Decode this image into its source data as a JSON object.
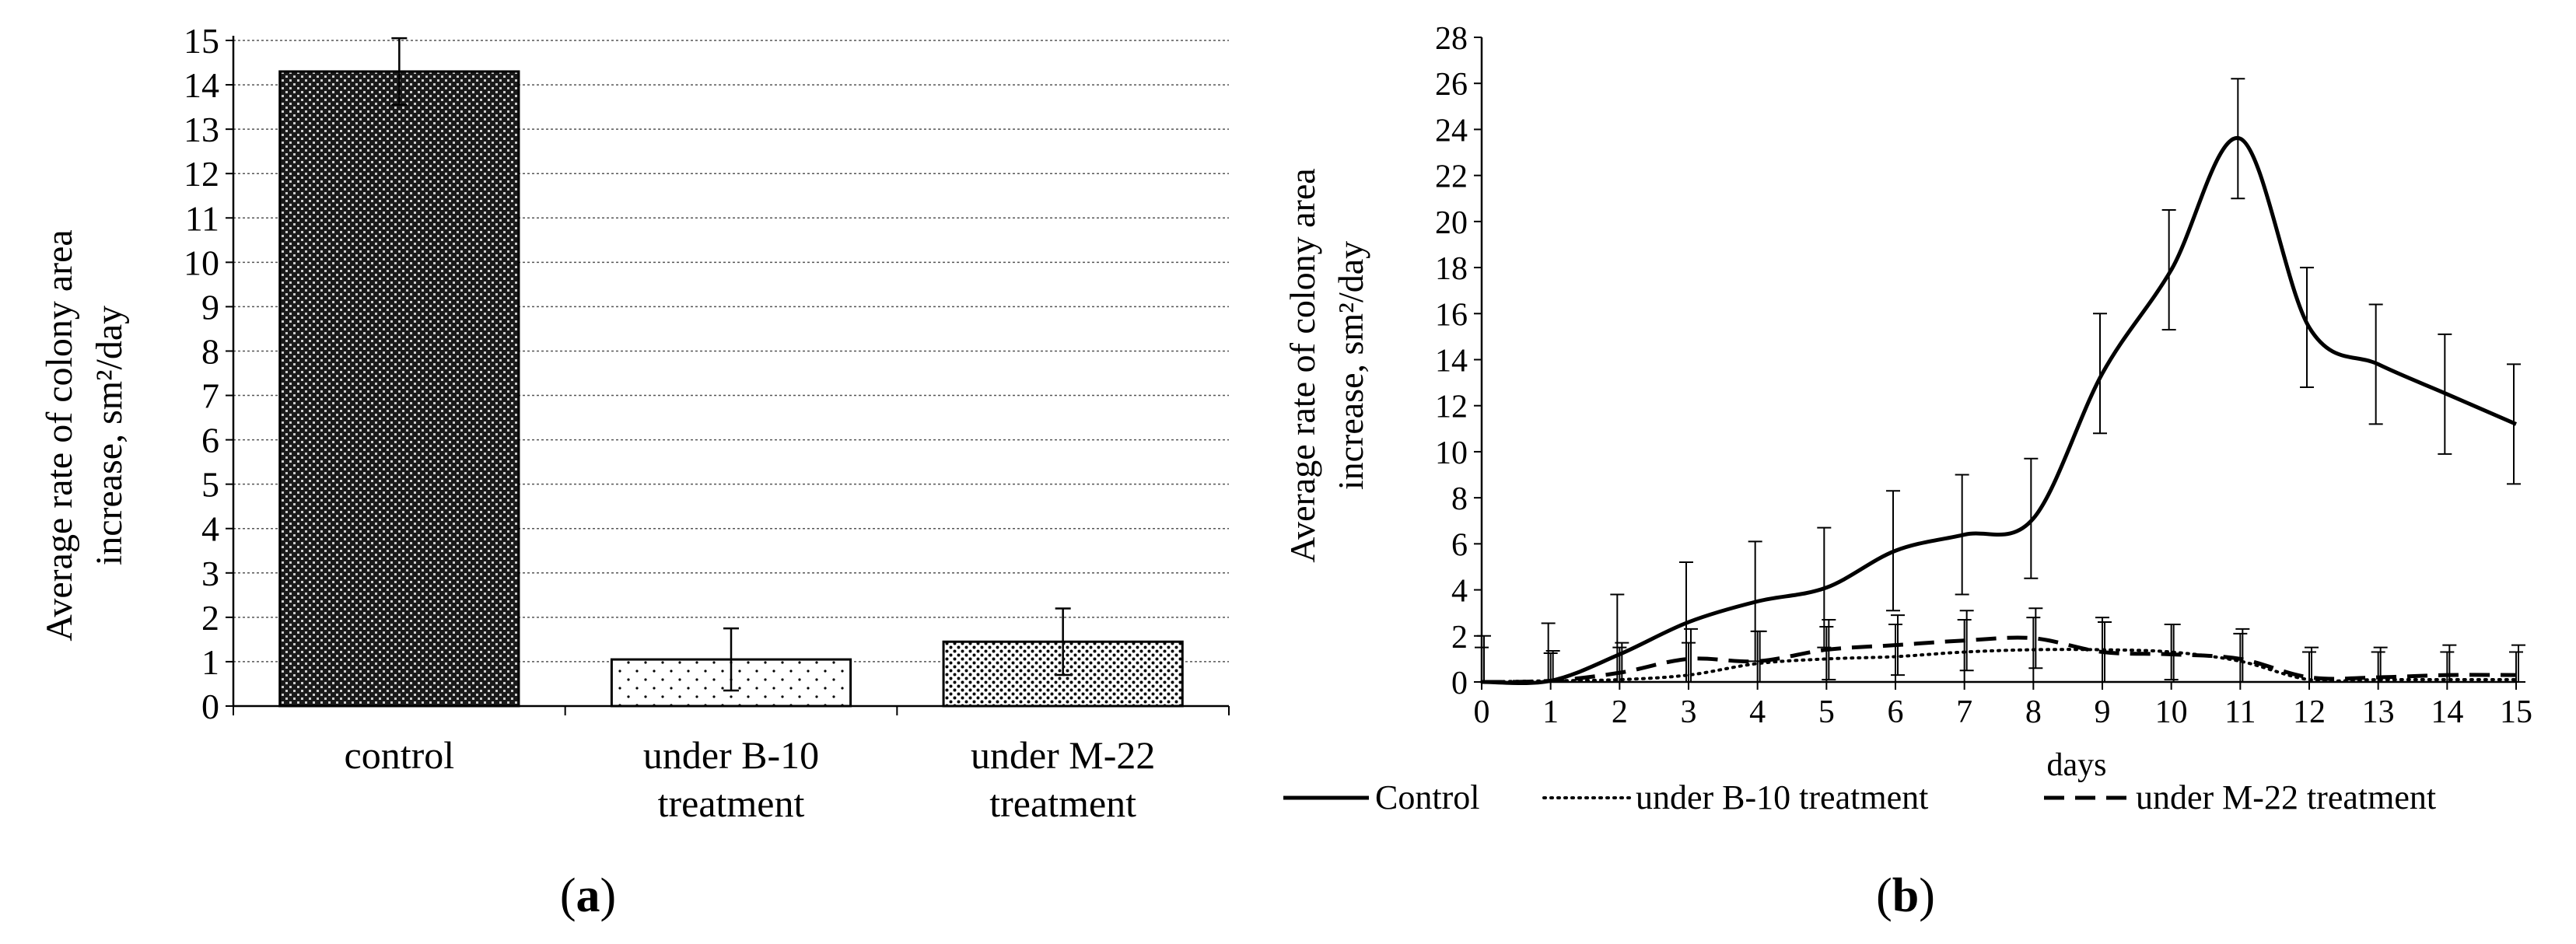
{
  "panels": {
    "a": {
      "label": "a"
    },
    "b": {
      "label": "b"
    }
  },
  "chart_data": [
    {
      "type": "bar",
      "panel": "a",
      "ylabel_line1": "Average rate of colony area",
      "ylabel_line2": "increase, sm²/day",
      "xlabel": "",
      "categories": [
        [
          "control"
        ],
        [
          "under B-10",
          "treatment"
        ],
        [
          "under M-22",
          "treatment"
        ]
      ],
      "values": [
        14.3,
        1.05,
        1.45
      ],
      "errors": [
        0.75,
        0.7,
        0.75
      ],
      "patterns": [
        "dense-crosshatch",
        "sparse-dots",
        "dense-dots"
      ],
      "ylim": [
        0,
        15
      ],
      "yticks": [
        0,
        1,
        2,
        3,
        4,
        5,
        6,
        7,
        8,
        9,
        10,
        11,
        12,
        13,
        14,
        15
      ],
      "grid": "horizontal-dashed"
    },
    {
      "type": "line",
      "panel": "b",
      "ylabel_line1": "Average rate of colony area",
      "ylabel_line2": "increase, sm²/day",
      "xlabel": "days",
      "x": [
        0,
        1,
        2,
        3,
        4,
        5,
        6,
        7,
        8,
        9,
        10,
        11,
        12,
        13,
        14,
        15
      ],
      "xlim": [
        0,
        15
      ],
      "ylim": [
        0,
        28
      ],
      "yticks": [
        0,
        2,
        4,
        6,
        8,
        10,
        12,
        14,
        16,
        18,
        20,
        22,
        24,
        26,
        28
      ],
      "legend_position": "bottom",
      "series": [
        {
          "name": "Control",
          "style": "solid",
          "values": [
            0,
            0.05,
            1.2,
            2.6,
            3.5,
            4.1,
            5.7,
            6.4,
            7.1,
            13.4,
            17.9,
            23.6,
            15.4,
            13.8,
            12.5,
            11.2
          ],
          "errors": [
            0,
            2.5,
            2.6,
            2.6,
            2.6,
            2.6,
            2.6,
            2.6,
            2.6,
            2.6,
            2.6,
            2.6,
            2.6,
            2.6,
            2.6,
            2.6
          ]
        },
        {
          "name": "under B-10 treatment",
          "style": "dotted",
          "values": [
            0,
            0.05,
            0.1,
            0.3,
            0.8,
            1.0,
            1.1,
            1.3,
            1.4,
            1.4,
            1.3,
            0.9,
            0.1,
            0.1,
            0.1,
            0.1
          ],
          "errors": [
            1.5,
            1.2,
            1.4,
            1.4,
            1.4,
            1.4,
            1.4,
            1.4,
            1.4,
            1.4,
            1.2,
            1.2,
            1.2,
            1.2,
            1.2,
            1.2
          ]
        },
        {
          "name": "under M-22 treatment",
          "style": "dashed",
          "values": [
            0,
            0.05,
            0.4,
            1.0,
            0.9,
            1.4,
            1.6,
            1.8,
            1.9,
            1.3,
            1.2,
            1.0,
            0.2,
            0.2,
            0.3,
            0.3
          ],
          "errors": [
            2.0,
            1.3,
            1.3,
            1.3,
            1.3,
            1.3,
            1.3,
            1.3,
            1.3,
            1.3,
            1.3,
            1.3,
            1.3,
            1.3,
            1.3,
            1.3
          ]
        }
      ]
    }
  ]
}
